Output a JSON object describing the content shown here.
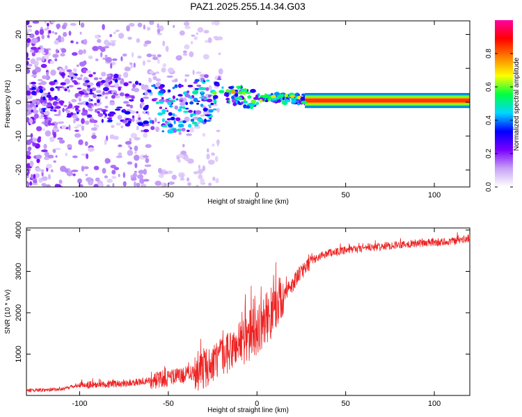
{
  "figure_title": "PAZ1.2025.255.14.34.G03",
  "chart_data": [
    {
      "type": "heatmap",
      "title": "PAZ1.2025.255.14.34.G03",
      "xlabel": "Height of straight line (km)",
      "ylabel": "Frequency (Hz)",
      "xlim": [
        -130,
        120
      ],
      "ylim": [
        -25,
        24
      ],
      "xticks": [
        -100,
        -50,
        0,
        50,
        100
      ],
      "xtick_labels": [
        "-100",
        "-50",
        "0",
        "50",
        "100"
      ],
      "yticks": [
        -20,
        -10,
        0,
        10,
        20
      ],
      "ytick_labels": [
        "-20",
        "-10",
        "0",
        "10",
        "20"
      ],
      "colorbar": {
        "label": "Normalized spectral amplitude",
        "range": [
          0,
          1
        ],
        "ticks": [
          0.0,
          0.2,
          0.4,
          0.6,
          0.8
        ],
        "tick_labels": [
          "0.0",
          "0.2",
          "0.4",
          "0.6",
          "0.8"
        ],
        "colors": [
          "#ffffff",
          "#c8a2f5",
          "#7b00ff",
          "#0000ff",
          "#00d8ff",
          "#00ff40",
          "#ffff00",
          "#ff8000",
          "#ff0000",
          "#ff00a0"
        ]
      },
      "ridge_profile": [
        {
          "x": -100,
          "freq": 2
        },
        {
          "x": -80,
          "freq": 1
        },
        {
          "x": -60,
          "freq": -2
        },
        {
          "x": -40,
          "freq": -2
        },
        {
          "x": -20,
          "freq": 3
        },
        {
          "x": 0,
          "freq": 1
        },
        {
          "x": 20,
          "freq": 1
        },
        {
          "x": 30,
          "freq": 0.5
        },
        {
          "x": 120,
          "freq": 0.5
        }
      ]
    },
    {
      "type": "line",
      "xlabel": "Height of straight line (km)",
      "ylabel": "SNR (10 * v/v)",
      "xlim": [
        -130,
        120
      ],
      "ylim": [
        0,
        4050
      ],
      "xticks": [
        -100,
        -50,
        0,
        50,
        100
      ],
      "xtick_labels": [
        "-100",
        "-50",
        "0",
        "50",
        "100"
      ],
      "yticks": [
        1000,
        2000,
        3000,
        4000
      ],
      "ytick_labels": [
        "1000",
        "2000",
        "3000",
        "4000"
      ],
      "color": "#ee2222",
      "trend": {
        "x": [
          -130,
          -110,
          -100,
          -80,
          -60,
          -40,
          -30,
          -20,
          -10,
          0,
          10,
          20,
          30,
          40,
          50,
          60,
          80,
          100,
          110,
          120
        ],
        "y": [
          120,
          150,
          250,
          280,
          350,
          500,
          650,
          900,
          1250,
          1600,
          2100,
          2700,
          3250,
          3450,
          3500,
          3550,
          3650,
          3700,
          3720,
          3800
        ]
      }
    }
  ]
}
